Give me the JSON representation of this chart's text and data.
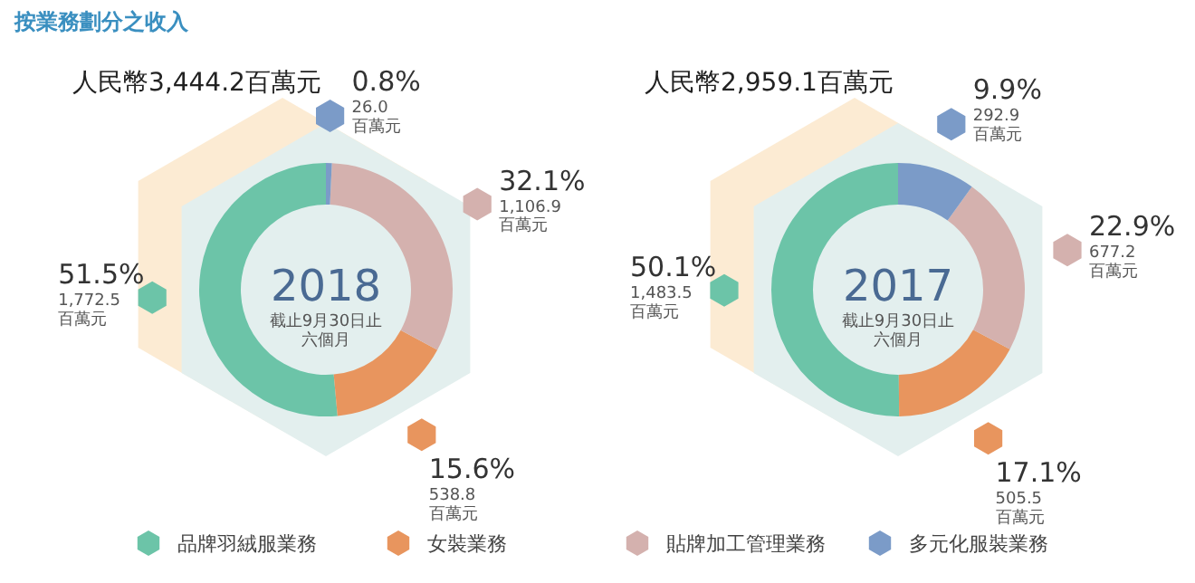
{
  "chart_data": [
    {
      "type": "donut",
      "title": "2018",
      "subtitle": "人民幣3,444.2百萬元",
      "annotations": [
        "按業務劃分之收入",
        "截止9月30日止六個月"
      ],
      "categories": [
        "品牌羽絨服業務",
        "女裝業務",
        "貼牌加工管理業務",
        "多元化服裝業務"
      ],
      "values": [
        1772.5,
        538.8,
        1106.9,
        26.0
      ],
      "colors": [
        "#6cc4a8",
        "#e8955e",
        "#d4b1ae",
        "#7b9bc8"
      ],
      "value_labels": [
        "51.5%\n1,772.5\n百萬元",
        "15.6%\n538.8\n百萬元",
        "32.1%\n1,106.9\n百萬元",
        "0.8%\n26.0\n百萬元"
      ],
      "legend": "bottom"
    },
    {
      "type": "donut",
      "title": "2017",
      "subtitle": "人民幣2,959.1百萬元",
      "annotations": [
        "截止9月30日止六個月"
      ],
      "categories": [
        null,
        null,
        null,
        null
      ],
      "values": [
        1483.5,
        505.5,
        677.2,
        292.9
      ],
      "colors": [
        "#6cc4a8",
        "#e8955e",
        "#d4b1ae",
        "#7b9bc8"
      ],
      "value_labels": [
        "50.1%\n1,483.5\n百萬元",
        "17.1%\n505.5\n百萬元",
        "22.9%\n677.2\n百萬元",
        "9.9%\n292.9\n百萬元"
      ]
    }
  ]
}
